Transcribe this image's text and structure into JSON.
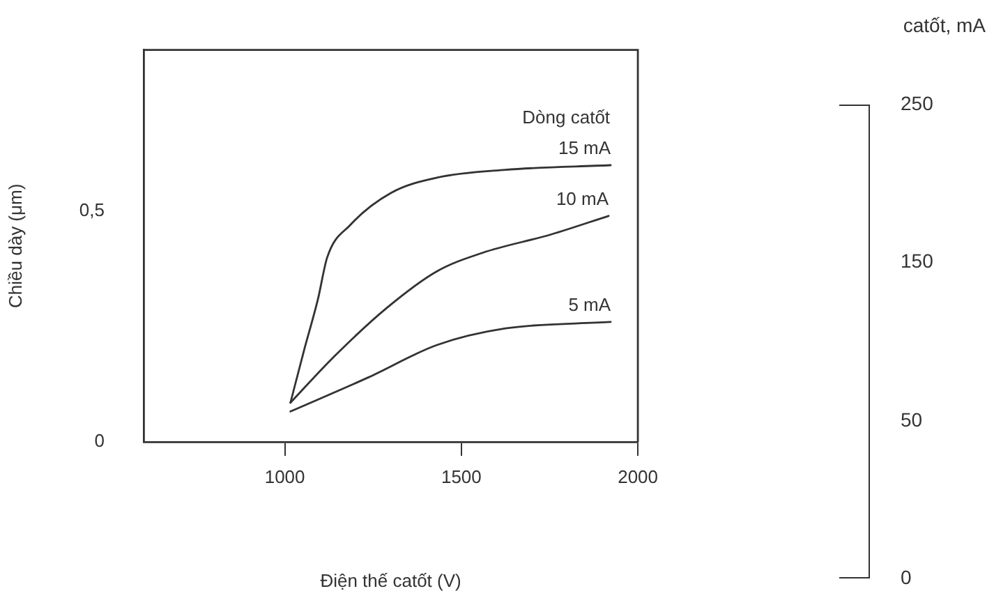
{
  "chart_data": [
    {
      "type": "line",
      "xlabel": "Điện thế catốt (V)",
      "ylabel": "Chiều dày (μm)",
      "legend_title": "Dòng catốt",
      "legend": false,
      "grid": false,
      "marker": "none",
      "xlim": [
        600,
        2000
      ],
      "xticks": [
        1000,
        1500,
        2000
      ],
      "ylim": [
        0,
        0.85
      ],
      "yticks": [
        0,
        {
          "value": 0.5,
          "label": "0,5"
        }
      ],
      "series": [
        {
          "name": "15 mA",
          "color": "#333333",
          "x": [
            1016,
            1055,
            1094,
            1120,
            1185,
            1301,
            1431,
            1625,
            1923
          ],
          "values": [
            0.085,
            0.2,
            0.31,
            0.4,
            0.47,
            0.54,
            0.573,
            0.59,
            0.6
          ]
        },
        {
          "name": "10 mA",
          "color": "#333333",
          "x": [
            1016,
            1133,
            1288,
            1431,
            1560,
            1755,
            1917
          ],
          "values": [
            0.085,
            0.18,
            0.29,
            0.37,
            0.41,
            0.45,
            0.49
          ]
        },
        {
          "name": "5 mA",
          "color": "#333333",
          "x": [
            1016,
            1237,
            1431,
            1625,
            1923
          ],
          "values": [
            0.066,
            0.14,
            0.21,
            0.246,
            0.26
          ]
        }
      ]
    },
    {
      "type": "other",
      "title": "catốt, mA",
      "annotations": [
        "250",
        "150",
        "50",
        "0"
      ]
    }
  ]
}
